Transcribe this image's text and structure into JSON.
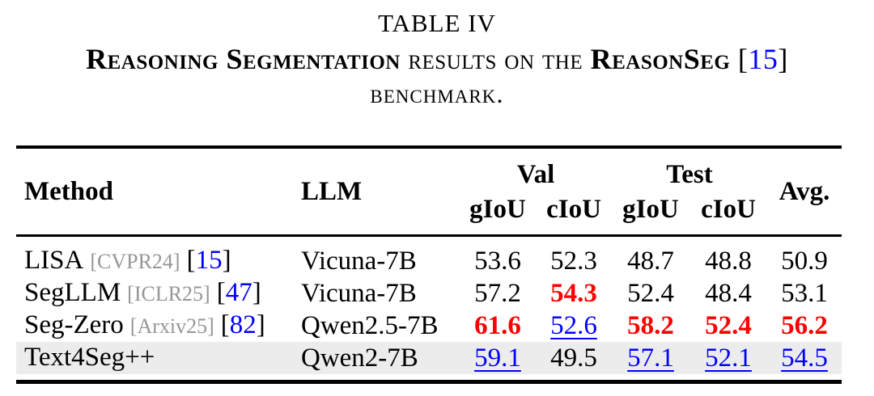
{
  "colors": {
    "best": "#fe0000",
    "second": "#0000fe",
    "link": "#0000fe",
    "venue": "#969696",
    "highlight": "#ececec",
    "rule": "#000000"
  },
  "caption": {
    "label": "TABLE IV",
    "seg1_bold": "Reasoning Segmentation",
    "seg2": " results on the ",
    "seg3_bold": "ReasonSeg",
    "cite_open": " [",
    "cite_num": "15",
    "cite_close": "]",
    "line3": "benchmark."
  },
  "table": {
    "header": {
      "method": "Method",
      "llm": "LLM",
      "val_group": "Val",
      "test_group": "Test",
      "avg": "Avg.",
      "sub": [
        "gIoU",
        "cIoU",
        "gIoU",
        "cIoU"
      ]
    },
    "rows": [
      {
        "method": "LISA",
        "venue": "[CVPR24]",
        "cite_open": "[",
        "cite_num": "15",
        "cite_close": "]",
        "llm": "Vicuna-7B",
        "row_class": "",
        "values": [
          {
            "v": "53.6",
            "s": ""
          },
          {
            "v": "52.3",
            "s": ""
          },
          {
            "v": "48.7",
            "s": ""
          },
          {
            "v": "48.8",
            "s": ""
          },
          {
            "v": "50.9",
            "s": ""
          }
        ]
      },
      {
        "method": "SegLLM",
        "venue": "[ICLR25]",
        "cite_open": "[",
        "cite_num": "47",
        "cite_close": "]",
        "llm": "Vicuna-7B",
        "row_class": "",
        "values": [
          {
            "v": "57.2",
            "s": ""
          },
          {
            "v": "54.3",
            "s": "best"
          },
          {
            "v": "52.4",
            "s": ""
          },
          {
            "v": "48.4",
            "s": ""
          },
          {
            "v": "53.1",
            "s": ""
          }
        ]
      },
      {
        "method": "Seg-Zero",
        "venue": "[Arxiv25]",
        "cite_open": "[",
        "cite_num": "82",
        "cite_close": "]",
        "llm": "Qwen2.5-7B",
        "row_class": "",
        "values": [
          {
            "v": "61.6",
            "s": "best"
          },
          {
            "v": "52.6",
            "s": "second"
          },
          {
            "v": "58.2",
            "s": "best"
          },
          {
            "v": "52.4",
            "s": "best"
          },
          {
            "v": "56.2",
            "s": "best"
          }
        ]
      },
      {
        "method": "Text4Seg++",
        "venue": "",
        "cite_open": "",
        "cite_num": "",
        "cite_close": "",
        "llm": "Qwen2-7B",
        "row_class": "highlight",
        "values": [
          {
            "v": "59.1",
            "s": "second"
          },
          {
            "v": "49.5",
            "s": ""
          },
          {
            "v": "57.1",
            "s": "second"
          },
          {
            "v": "52.1",
            "s": "second"
          },
          {
            "v": "54.5",
            "s": "second"
          }
        ]
      }
    ]
  }
}
